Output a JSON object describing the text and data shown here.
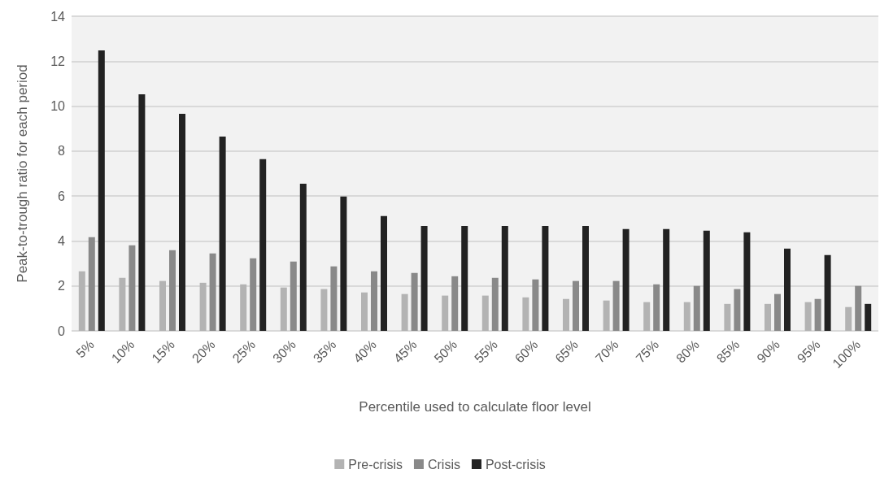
{
  "chart_data": {
    "type": "bar",
    "xlabel": "Percentile used to calculate floor level",
    "ylabel": "Peak-to-trough ratio for each period",
    "categories": [
      "5%",
      "10%",
      "15%",
      "20%",
      "25%",
      "30%",
      "35%",
      "40%",
      "45%",
      "50%",
      "55%",
      "60%",
      "65%",
      "70%",
      "75%",
      "80%",
      "85%",
      "90%",
      "95%",
      "100%"
    ],
    "series": [
      {
        "name": "Pre-crisis",
        "color": "#b3b3b3",
        "values": [
          2.65,
          2.36,
          2.22,
          2.14,
          2.07,
          1.93,
          1.86,
          1.71,
          1.64,
          1.57,
          1.57,
          1.49,
          1.42,
          1.35,
          1.28,
          1.28,
          1.2,
          1.2,
          1.28,
          1.06
        ]
      },
      {
        "name": "Crisis",
        "color": "#898989",
        "values": [
          4.17,
          3.81,
          3.59,
          3.45,
          3.23,
          3.08,
          2.87,
          2.65,
          2.58,
          2.43,
          2.36,
          2.29,
          2.22,
          2.22,
          2.07,
          2.0,
          1.86,
          1.64,
          1.42,
          2.0
        ]
      },
      {
        "name": "Post-crisis",
        "color": "#222222",
        "values": [
          12.48,
          10.53,
          9.66,
          8.65,
          7.64,
          6.55,
          5.98,
          5.11,
          4.67,
          4.67,
          4.67,
          4.67,
          4.67,
          4.53,
          4.53,
          4.46,
          4.39,
          3.66,
          3.37,
          1.2
        ]
      }
    ],
    "ylim": [
      0,
      14
    ],
    "yticks": [
      0,
      2,
      4,
      6,
      8,
      10,
      12,
      14
    ],
    "grid": "y",
    "legend": "bottom"
  }
}
